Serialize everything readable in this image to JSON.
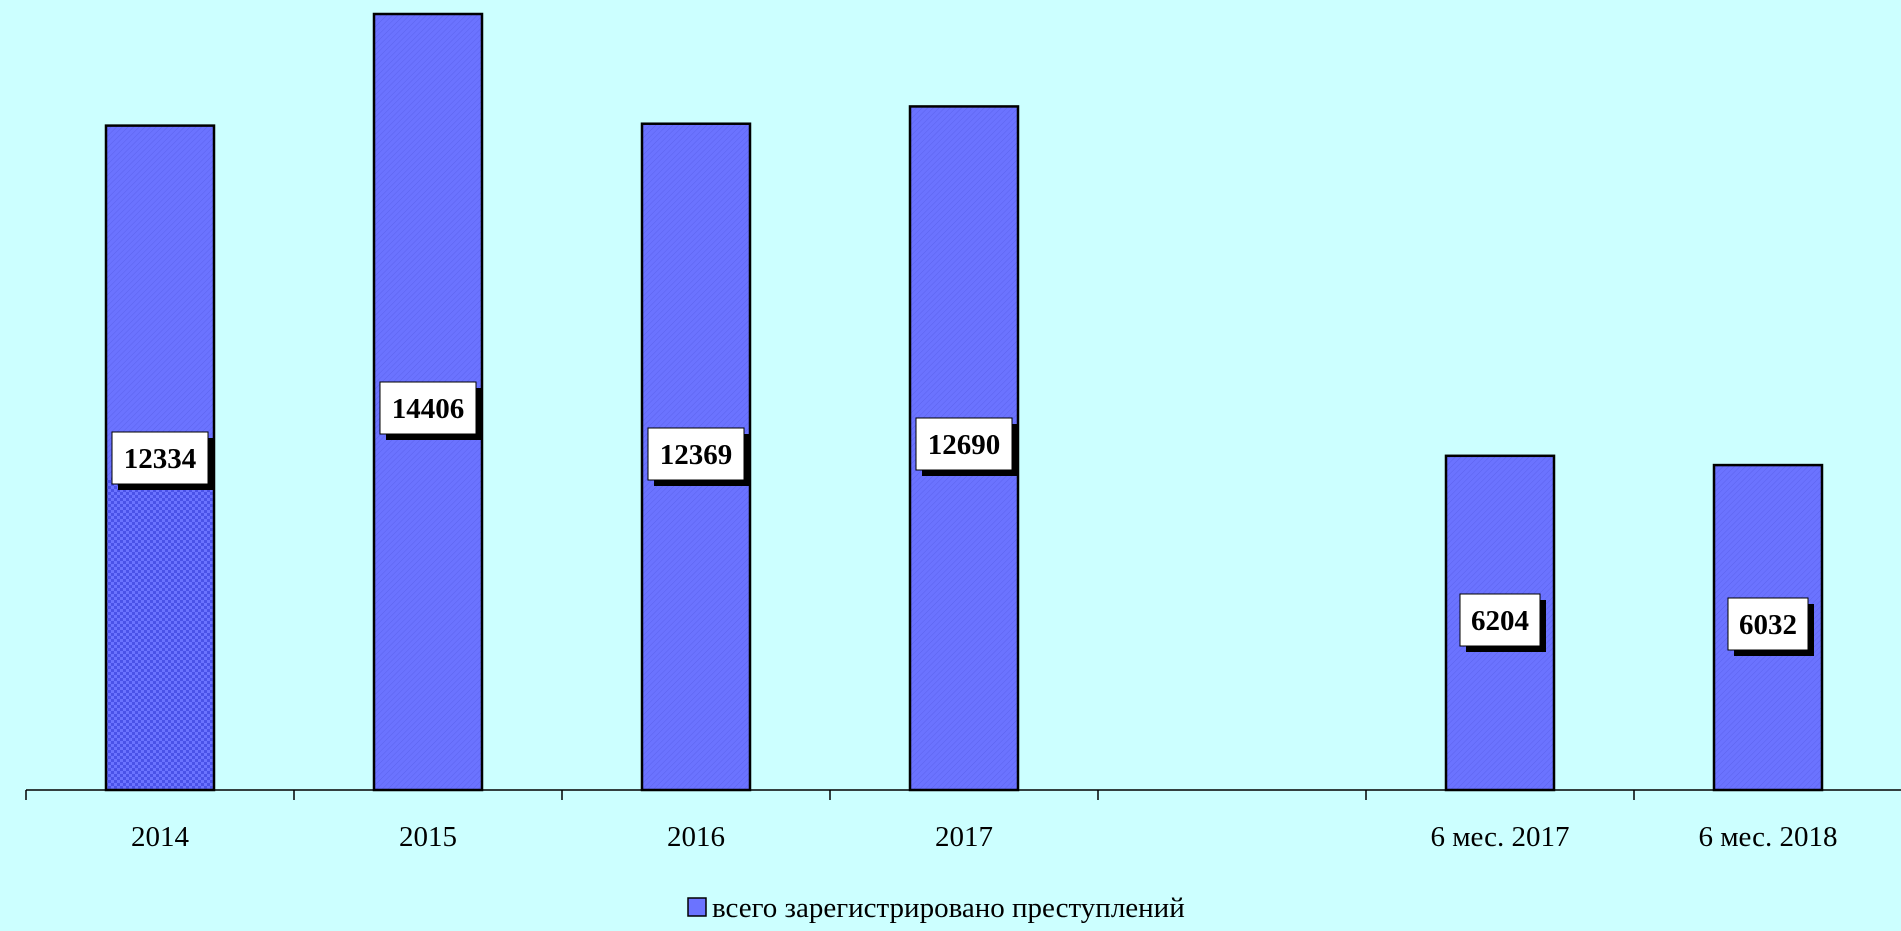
{
  "colors": {
    "background": "#ccffff",
    "bar_fill": "#6b73ff",
    "bar_hatch": "#5c63ee",
    "bar_stroke": "#000000",
    "label_bg": "#ffffff",
    "label_shadow": "#000000"
  },
  "chart_data": {
    "type": "bar",
    "categories": [
      "2014",
      "2015",
      "2016",
      "2017",
      "",
      "6 мес. 2017",
      "6 мес. 2018"
    ],
    "series": [
      {
        "name": "всего зарегистрировано преступлений",
        "values": [
          12334,
          14406,
          12369,
          12690,
          null,
          6204,
          6032
        ]
      }
    ],
    "data_labels": [
      "12334",
      "14406",
      "12369",
      "12690",
      "",
      "6204",
      "6032"
    ],
    "ylim": [
      0,
      14406
    ],
    "y_axis_visible": false,
    "grid": false,
    "legend_position": "bottom-center",
    "note": "first bar lower portion shows a checkered pattern fill"
  },
  "legend": {
    "label": "всего зарегистрировано преступлений"
  }
}
